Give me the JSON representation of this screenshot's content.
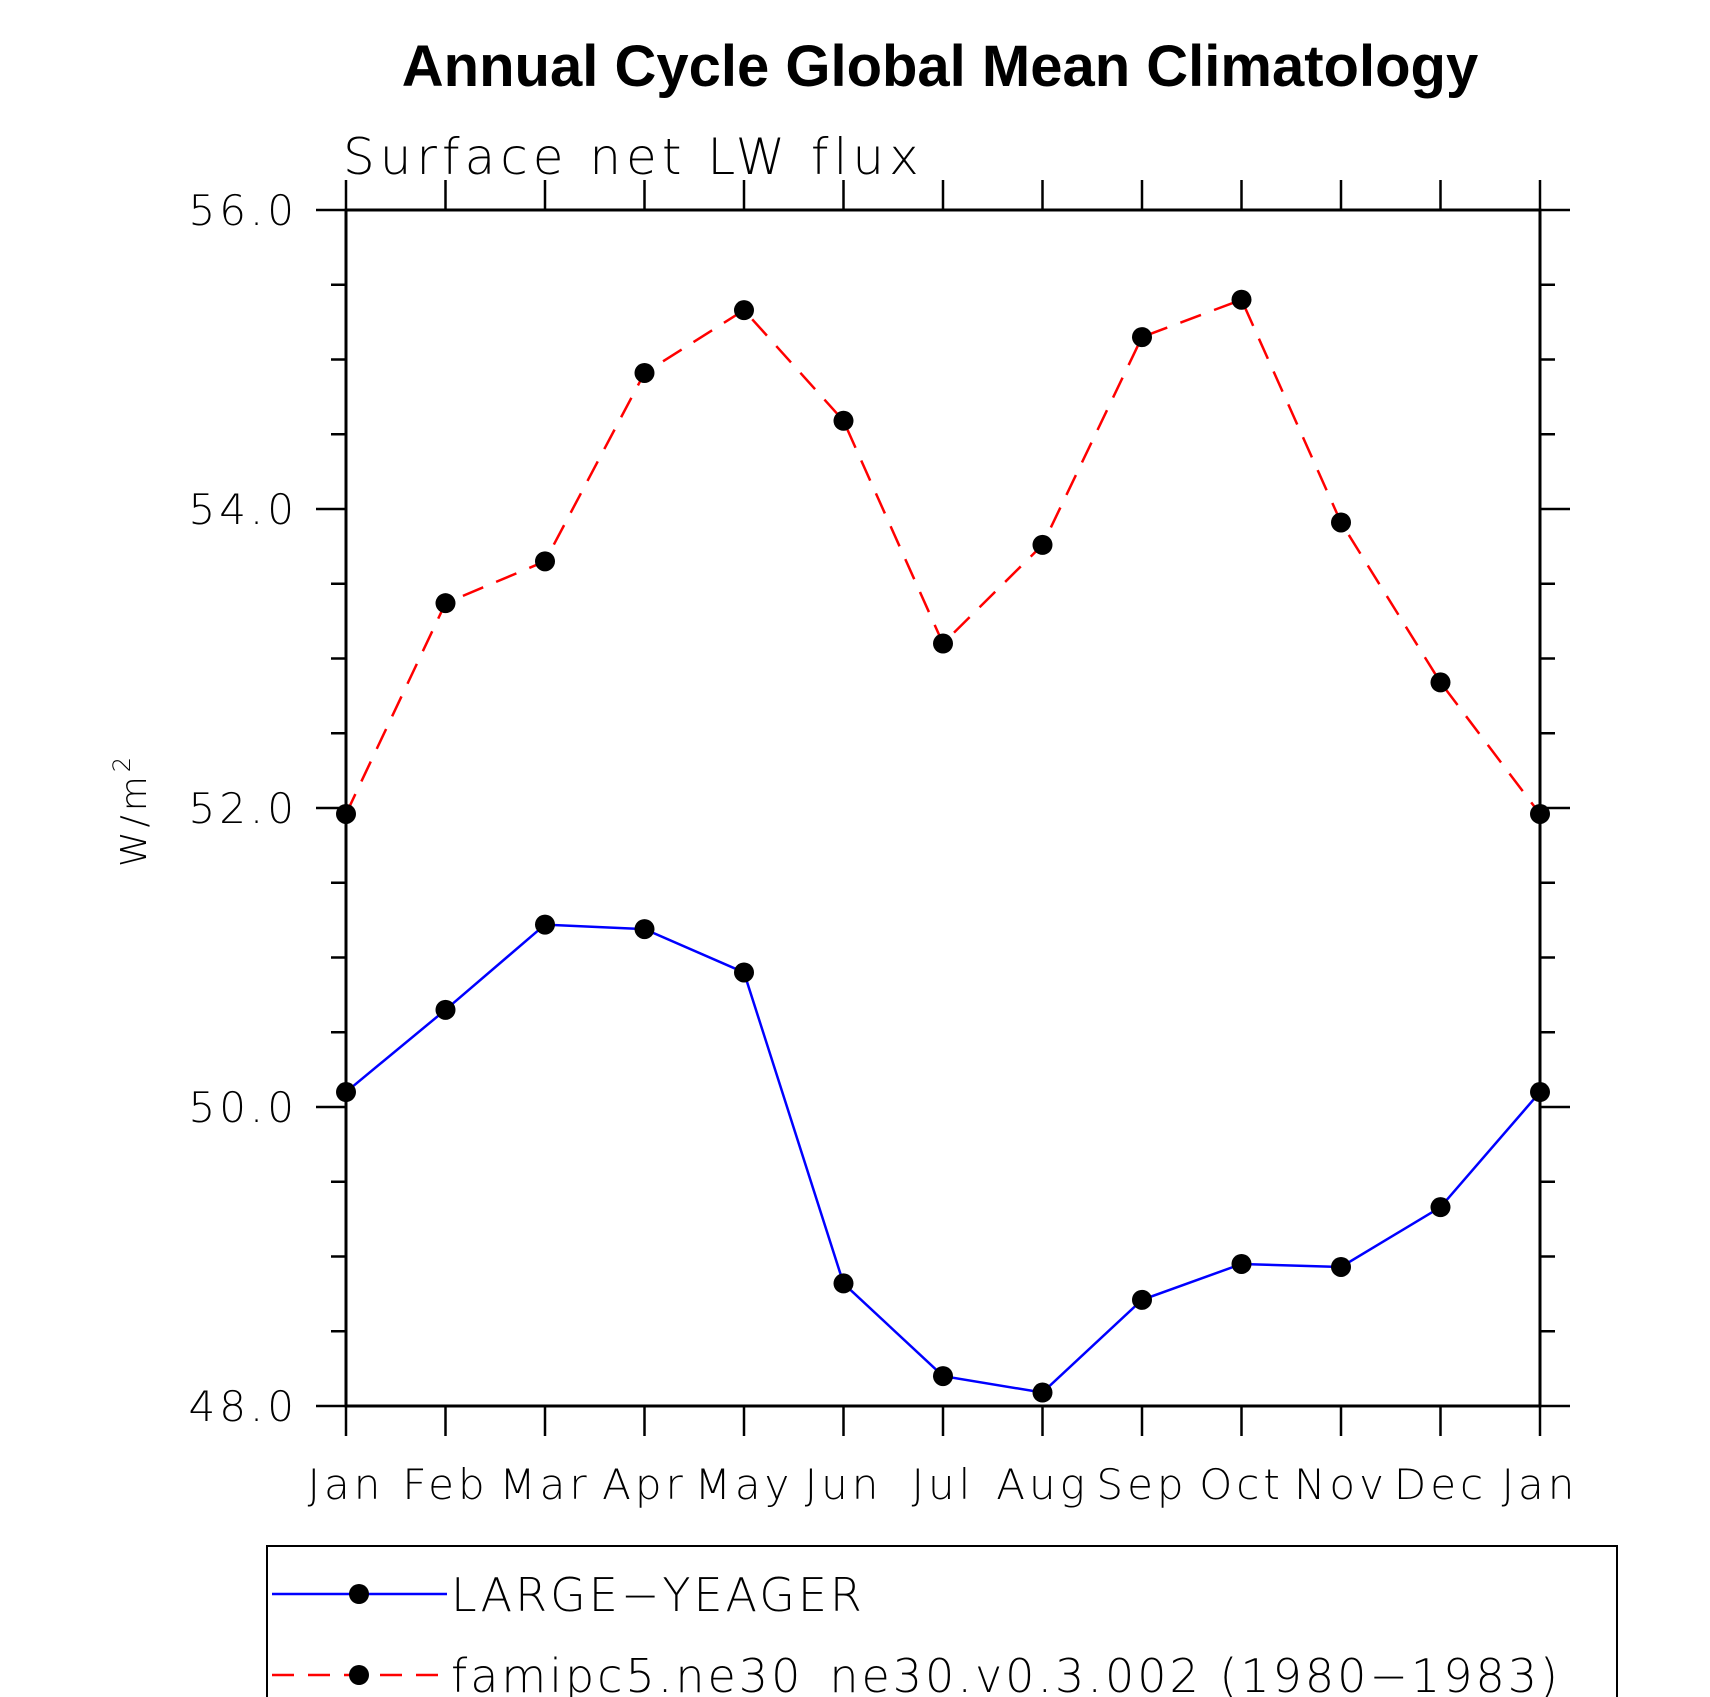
{
  "chart_data": {
    "type": "line",
    "title": "Annual Cycle Global Mean Climatology",
    "subtitle": "Surface net LW flux",
    "ylabel": "W/m",
    "ylabel_superscript": "2",
    "xlabel": "",
    "categories": [
      "Jan",
      "Feb",
      "Mar",
      "Apr",
      "May",
      "Jun",
      "Jul",
      "Aug",
      "Sep",
      "Oct",
      "Nov",
      "Dec",
      "Jan"
    ],
    "ylim": [
      48.0,
      56.0
    ],
    "yticks": [
      "48.0",
      "50.0",
      "52.0",
      "54.0",
      "56.0"
    ],
    "grid": false,
    "legend_position": "bottom",
    "series": [
      {
        "name": "LARGE−YEAGER",
        "color": "#0000ff",
        "dash": "solid",
        "marker": "filled-circle",
        "values": [
          50.1,
          50.65,
          51.22,
          51.19,
          50.9,
          48.82,
          48.2,
          48.09,
          48.71,
          48.95,
          48.93,
          49.33,
          50.1
        ]
      },
      {
        "name": "famipc5.ne30_ne30.v0.3.002 (1980−1983)",
        "color": "#ff0000",
        "dash": "dashed",
        "marker": "filled-circle",
        "values": [
          51.96,
          53.37,
          53.65,
          54.91,
          55.33,
          54.59,
          53.1,
          53.76,
          55.15,
          55.4,
          53.91,
          52.84,
          51.96
        ]
      }
    ]
  }
}
